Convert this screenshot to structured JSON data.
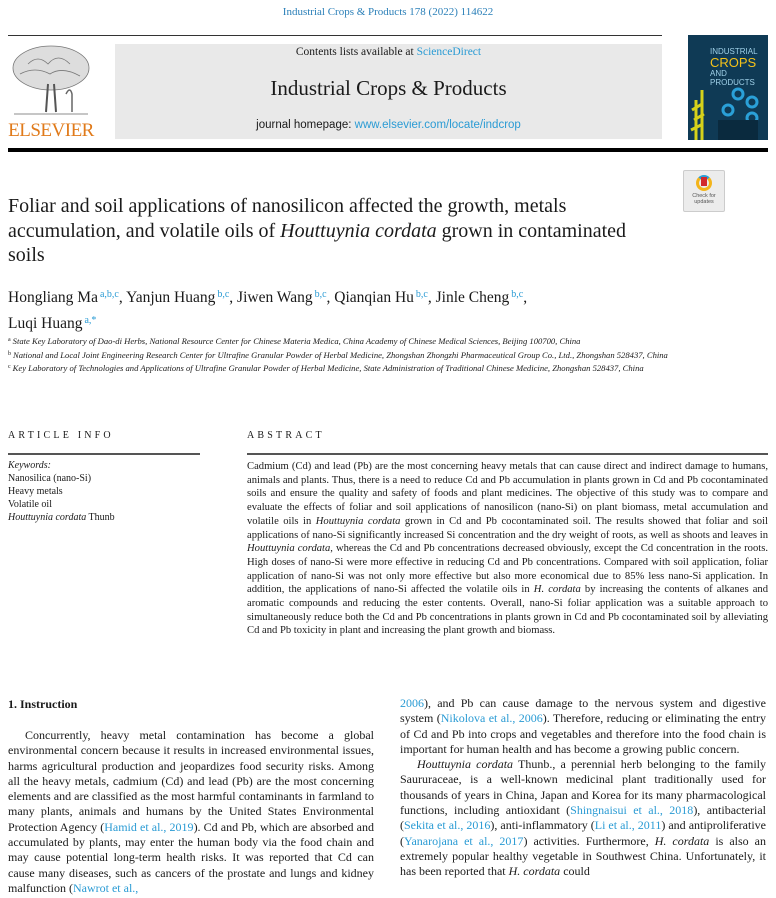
{
  "header": {
    "citation": "Industrial Crops & Products 178 (2022) 114622",
    "publisher_logo": "ELSEVIER",
    "contents_prefix": "Contents lists available at ",
    "contents_link": "ScienceDirect",
    "journal_name": "Industrial Crops & Products",
    "homepage_prefix": "journal homepage: ",
    "homepage_link": "www.elsevier.com/locate/indcrop",
    "cover_title_1": "INDUSTRIAL",
    "cover_title_2": "CROPS",
    "cover_title_3": "AND PRODUCTS",
    "crossmark_label": "Check for updates"
  },
  "article": {
    "title": [
      {
        "t": "Foliar and soil applications of nanosilicon affected the growth, metals accumulation, and volatile oils of ",
        "k": ""
      },
      {
        "t": "Houttuynia cordata",
        "k": "i"
      },
      {
        "t": " grown in contaminated soils",
        "k": ""
      }
    ],
    "authors": [
      {
        "name": "Hongliang Ma",
        "sup": "a,b,c"
      },
      {
        "name": "Yanjun Huang",
        "sup": "b,c"
      },
      {
        "name": "Jiwen Wang",
        "sup": "b,c"
      },
      {
        "name": "Qianqian Hu",
        "sup": "b,c"
      },
      {
        "name": "Jinle Cheng",
        "sup": "b,c"
      },
      {
        "name": "Luqi Huang",
        "sup": "a,*"
      }
    ],
    "affiliations": [
      {
        "mark": "a",
        "text": "State Key Laboratory of Dao-di Herbs, National Resource Center for Chinese Materia Medica, China Academy of Chinese Medical Sciences, Beijing 100700, China"
      },
      {
        "mark": "b",
        "text": "National and Local Joint Engineering Research Center for Ultrafine Granular Powder of Herbal Medicine, Zhongshan Zhongzhi Pharmaceutical Group Co., Ltd., Zhongshan 528437, China"
      },
      {
        "mark": "c",
        "text": "Key Laboratory of Technologies and Applications of Ultrafine Granular Powder of Herbal Medicine, State Administration of Traditional Chinese Medicine, Zhongshan 528437, China"
      }
    ]
  },
  "article_info": {
    "heading": "ARTICLE INFO",
    "keywords_label": "Keywords:",
    "keywords": [
      [
        {
          "t": "Nanosilica (nano-Si)",
          "k": ""
        }
      ],
      [
        {
          "t": "Heavy metals",
          "k": ""
        }
      ],
      [
        {
          "t": "Volatile oil",
          "k": ""
        }
      ],
      [
        {
          "t": "Houttuynia cordata",
          "k": "i"
        },
        {
          "t": " Thunb",
          "k": ""
        }
      ]
    ]
  },
  "abstract": {
    "heading": "ABSTRACT",
    "segments": [
      {
        "t": "Cadmium (Cd) and lead (Pb) are the most concerning heavy metals that can cause direct and indirect damage to humans, animals and plants. Thus, there is a need to reduce Cd and Pb accumulation in plants grown in Cd and Pb cocontaminated soils and ensure the quality and safety of foods and plant medicines. The objective of this study was to compare and evaluate the effects of foliar and soil applications of nanosilicon (nano-Si) on plant biomass, metal accumulation and volatile oils in ",
        "k": ""
      },
      {
        "t": "Houttuynia cordata",
        "k": "i"
      },
      {
        "t": " grown in Cd and Pb cocontaminated soil. The results showed that foliar and soil applications of nano-Si significantly increased Si concentration and the dry weight of roots, as well as shoots and leaves in ",
        "k": ""
      },
      {
        "t": "Houttuynia cordata",
        "k": "i"
      },
      {
        "t": ", whereas the Cd and Pb concentrations decreased obviously, except the Cd concentration in the roots. High doses of nano-Si were more effective in reducing Cd and Pb concentrations. Compared with soil application, foliar application of nano-Si was not only more effective but also more economical due to 85% less nano-Si application. In addition, the applications of nano-Si affected the volatile oils in ",
        "k": ""
      },
      {
        "t": "H. cordata",
        "k": "i"
      },
      {
        "t": " by increasing the contents of alkanes and aromatic compounds and reducing the ester contents. Overall, nano-Si foliar application was a suitable approach to simultaneously reduce both the Cd and Pb concentrations in plants grown in Cd and Pb cocontaminated soil by alleviating Cd and Pb toxicity in plant and increasing the plant growth and biomass.",
        "k": ""
      }
    ]
  },
  "body": {
    "section_heading": "1.  Instruction",
    "left": [
      [
        {
          "t": "Concurrently, heavy metal contamination has become a global environmental concern because it results in increased environmental issues, harms agricultural production and jeopardizes food security risks. Among all the heavy metals, cadmium (Cd) and lead (Pb) are the most concerning elements and are classified as the most harmful con­taminants in farmland to many plants, animals and humans by the United States Environmental Protection Agency (",
          "k": ""
        },
        {
          "t": "Hamid et al., 2019",
          "k": "a"
        },
        {
          "t": "). Cd and Pb, which are absorbed and accumulated by plants, may enter the human body via the food chain and may cause potential long-term health risks. It was reported that Cd can cause many diseases, such as cancers of the prostate and lungs and kidney malfunction (",
          "k": ""
        },
        {
          "t": "Nawrot et al.,",
          "k": "a"
        }
      ]
    ],
    "right": [
      [
        {
          "t": "2006",
          "k": "a"
        },
        {
          "t": "), and Pb can cause damage to the nervous system and digestive system (",
          "k": ""
        },
        {
          "t": "Nikolova et al., 2006",
          "k": "a"
        },
        {
          "t": "). Therefore, reducing or eliminating the entry of Cd and Pb into crops and vegetables and therefore into the food chain is important for human health and has become a growing public concern.",
          "k": ""
        }
      ],
      [
        {
          "t": "Houttuynia cordata",
          "k": "i"
        },
        {
          "t": " Thunb., a perennial herb belonging to the family Saururaceae, is a well-known medicinal plant traditionally used for thousands of years in China, Japan and Korea for its many pharmaco­logical functions, including antioxidant (",
          "k": ""
        },
        {
          "t": "Shingnaisui et al., 2018",
          "k": "a"
        },
        {
          "t": "), antibacterial (",
          "k": ""
        },
        {
          "t": "Sekita et al., 2016",
          "k": "a"
        },
        {
          "t": "), anti-inflammatory (",
          "k": ""
        },
        {
          "t": "Li et al., 2011",
          "k": "a"
        },
        {
          "t": ") and antiproliferative (",
          "k": ""
        },
        {
          "t": "Yanarojana et al., 2017",
          "k": "a"
        },
        {
          "t": ") activities. Furthermore, ",
          "k": ""
        },
        {
          "t": "H. cordata",
          "k": "i"
        },
        {
          "t": " is also an extremely popular healthy vegetable in Southwest China. Unfortunately, it has been reported that ",
          "k": ""
        },
        {
          "t": "H. cordata",
          "k": "i"
        },
        {
          "t": " could",
          "k": ""
        }
      ]
    ]
  },
  "colors": {
    "link": "#2a9bd4",
    "elsevier_orange": "#e07a1a",
    "header_box": "#e9e9e9"
  }
}
